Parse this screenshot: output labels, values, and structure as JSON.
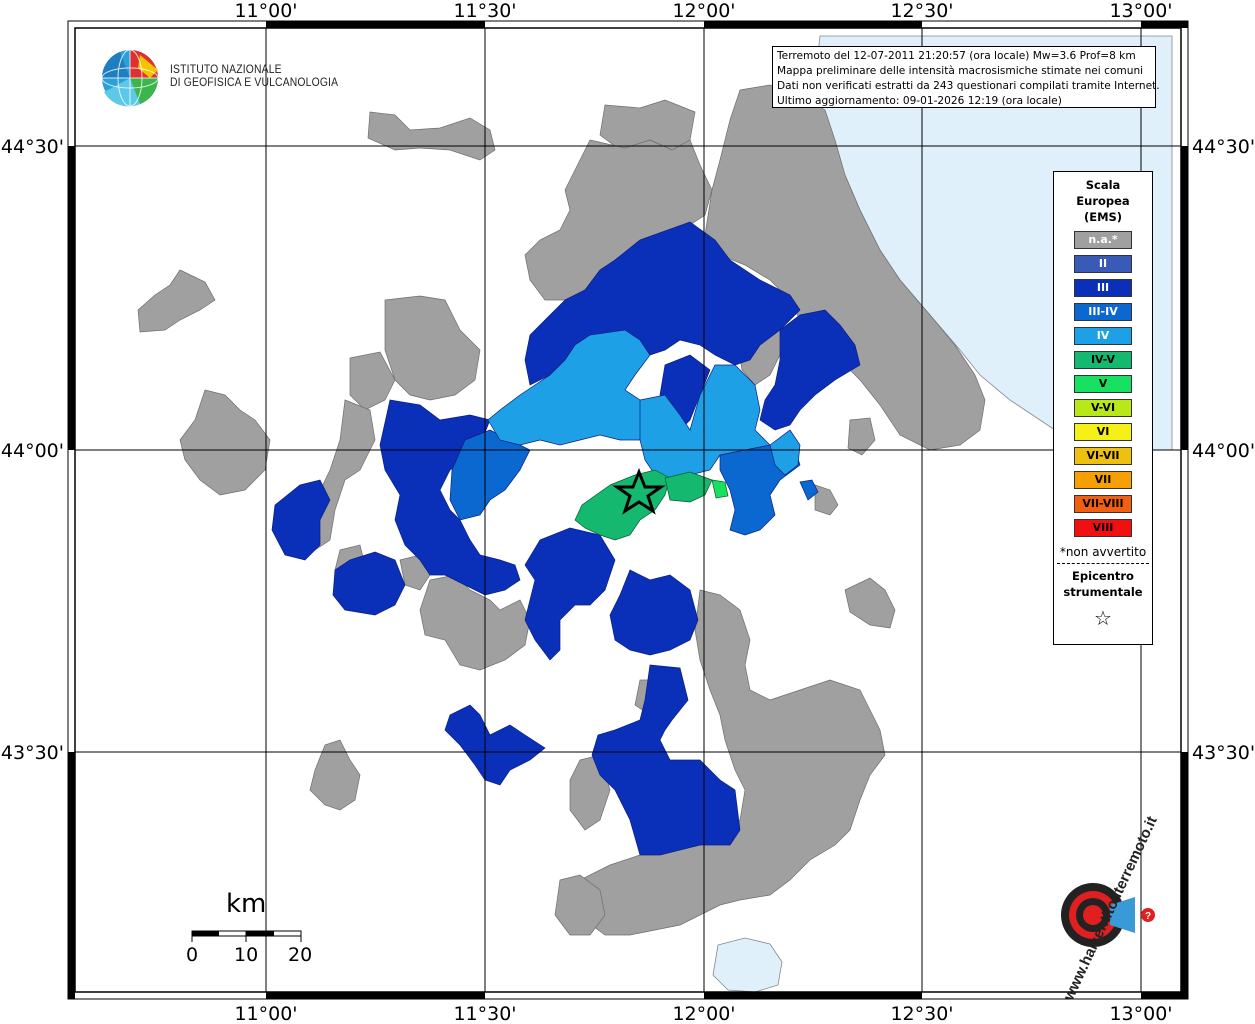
{
  "info": {
    "line1": "Terremoto del 12-07-2011 21:20:57 (ora locale) Mw=3.6 Prof=8 km",
    "line2": "Mappa preliminare delle intensità macrosismiche stimate nei comuni",
    "line3": "Dati non verificati estratti da 243 questionari compilati tramite Internet.",
    "line4": "Ultimo aggiornamento: 09-01-2026 12:19 (ora locale)"
  },
  "institute": {
    "line1": "ISTITUTO NAZIONALE",
    "line2": "DI GEOFISICA E VULCANOLOGIA"
  },
  "axes": {
    "lon_labels": [
      "11°00'",
      "11°30'",
      "12°00'",
      "12°30'",
      "13°00'"
    ],
    "lat_labels": [
      "44°30'",
      "44°00'",
      "43°30'"
    ]
  },
  "legend": {
    "title_lines": [
      "Scala",
      "Europea",
      "(EMS)"
    ],
    "items": [
      {
        "label": "n.a.*",
        "color": "#a0a0a0",
        "text_color": "#ffffff"
      },
      {
        "label": "II",
        "color": "#3a5ab8",
        "text_color": "#ffffff"
      },
      {
        "label": "III",
        "color": "#0a2fb8",
        "text_color": "#ffffff"
      },
      {
        "label": "III-IV",
        "color": "#0b68d0",
        "text_color": "#ffffff"
      },
      {
        "label": "IV",
        "color": "#1ea0e6",
        "text_color": "#ffffff"
      },
      {
        "label": "IV-V",
        "color": "#14b86e",
        "text_color": "#000000"
      },
      {
        "label": "V",
        "color": "#18e060",
        "text_color": "#000000"
      },
      {
        "label": "V-VI",
        "color": "#b8e818",
        "text_color": "#000000"
      },
      {
        "label": "VI",
        "color": "#f5f018",
        "text_color": "#000000"
      },
      {
        "label": "VI-VII",
        "color": "#f0c010",
        "text_color": "#000000"
      },
      {
        "label": "VII",
        "color": "#f5a000",
        "text_color": "#000000"
      },
      {
        "label": "VII-VIII",
        "color": "#f06010",
        "text_color": "#000000"
      },
      {
        "label": "VIII",
        "color": "#f01010",
        "text_color": "#000000"
      }
    ],
    "note": "*non avvertito",
    "epicenter_lines": [
      "Epicentro",
      "strumentale"
    ],
    "epicenter_symbol": "☆"
  },
  "scale_bar": {
    "unit": "km",
    "labels": [
      "0",
      "10",
      "20"
    ]
  },
  "colors": {
    "sea": "#dff0fb",
    "na": "#a0a0a0",
    "ems_III": "#0a2fb8",
    "ems_III_IV": "#0b68d0",
    "ems_IV": "#1ea0e6",
    "ems_IV_V": "#14b86e",
    "ems_V": "#18e060"
  },
  "watermark": {
    "text": "www.haisentitoilterremoto.it"
  }
}
